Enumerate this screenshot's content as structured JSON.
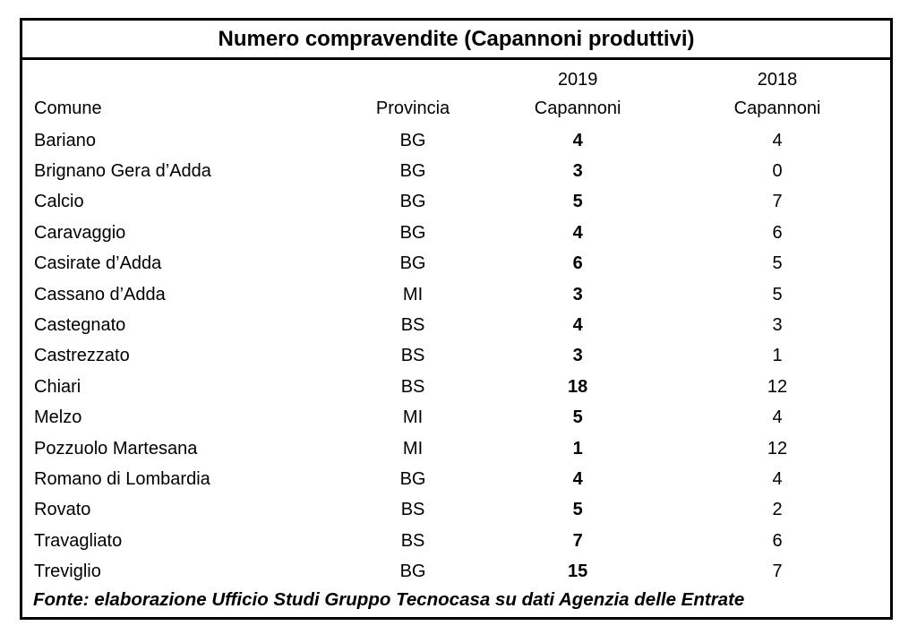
{
  "title": "Numero compravendite (Capannoni produttivi)",
  "table": {
    "header": {
      "year_2019": "2019",
      "year_2018": "2018",
      "comune": "Comune",
      "provincia": "Provincia",
      "capannoni_2019": "Capannoni",
      "capannoni_2018": "Capannoni"
    },
    "rows": [
      {
        "comune": "Bariano",
        "provincia": "BG",
        "v2019": "4",
        "v2018": "4"
      },
      {
        "comune": "Brignano Gera d’Adda",
        "provincia": "BG",
        "v2019": "3",
        "v2018": "0"
      },
      {
        "comune": "Calcio",
        "provincia": "BG",
        "v2019": "5",
        "v2018": "7"
      },
      {
        "comune": "Caravaggio",
        "provincia": "BG",
        "v2019": "4",
        "v2018": "6"
      },
      {
        "comune": "Casirate d’Adda",
        "provincia": "BG",
        "v2019": "6",
        "v2018": "5"
      },
      {
        "comune": "Cassano d’Adda",
        "provincia": "MI",
        "v2019": "3",
        "v2018": "5"
      },
      {
        "comune": "Castegnato",
        "provincia": "BS",
        "v2019": "4",
        "v2018": "3"
      },
      {
        "comune": "Castrezzato",
        "provincia": "BS",
        "v2019": "3",
        "v2018": "1"
      },
      {
        "comune": "Chiari",
        "provincia": "BS",
        "v2019": "18",
        "v2018": "12"
      },
      {
        "comune": "Melzo",
        "provincia": "MI",
        "v2019": "5",
        "v2018": "4"
      },
      {
        "comune": "Pozzuolo Martesana",
        "provincia": "MI",
        "v2019": "1",
        "v2018": "12"
      },
      {
        "comune": "Romano di Lombardia",
        "provincia": "BG",
        "v2019": "4",
        "v2018": "4"
      },
      {
        "comune": "Rovato",
        "provincia": "BS",
        "v2019": "5",
        "v2018": "2"
      },
      {
        "comune": "Travagliato",
        "provincia": "BS",
        "v2019": "7",
        "v2018": "6"
      },
      {
        "comune": "Treviglio",
        "provincia": "BG",
        "v2019": "15",
        "v2018": "7"
      }
    ]
  },
  "source_note": "Fonte: elaborazione Ufficio Studi Gruppo Tecnocasa su dati Agenzia delle Entrate",
  "colors": {
    "text": "#000000",
    "background": "#ffffff",
    "border": "#000000"
  },
  "chart_data": {
    "type": "table",
    "title": "Numero compravendite (Capannoni produttivi)",
    "columns": [
      "Comune",
      "Provincia",
      "2019 Capannoni",
      "2018 Capannoni"
    ],
    "rows": [
      [
        "Bariano",
        "BG",
        4,
        4
      ],
      [
        "Brignano Gera d’Adda",
        "BG",
        3,
        0
      ],
      [
        "Calcio",
        "BG",
        5,
        7
      ],
      [
        "Caravaggio",
        "BG",
        4,
        6
      ],
      [
        "Casirate d’Adda",
        "BG",
        6,
        5
      ],
      [
        "Cassano d’Adda",
        "MI",
        3,
        5
      ],
      [
        "Castegnato",
        "BS",
        4,
        3
      ],
      [
        "Castrezzato",
        "BS",
        3,
        1
      ],
      [
        "Chiari",
        "BS",
        18,
        12
      ],
      [
        "Melzo",
        "MI",
        5,
        4
      ],
      [
        "Pozzuolo Martesana",
        "MI",
        1,
        12
      ],
      [
        "Romano di Lombardia",
        "BG",
        4,
        4
      ],
      [
        "Rovato",
        "BS",
        5,
        2
      ],
      [
        "Travagliato",
        "BS",
        7,
        6
      ],
      [
        "Treviglio",
        "BG",
        15,
        7
      ]
    ],
    "source": "Fonte: elaborazione Ufficio Studi Gruppo Tecnocasa su dati Agenzia delle Entrate"
  }
}
